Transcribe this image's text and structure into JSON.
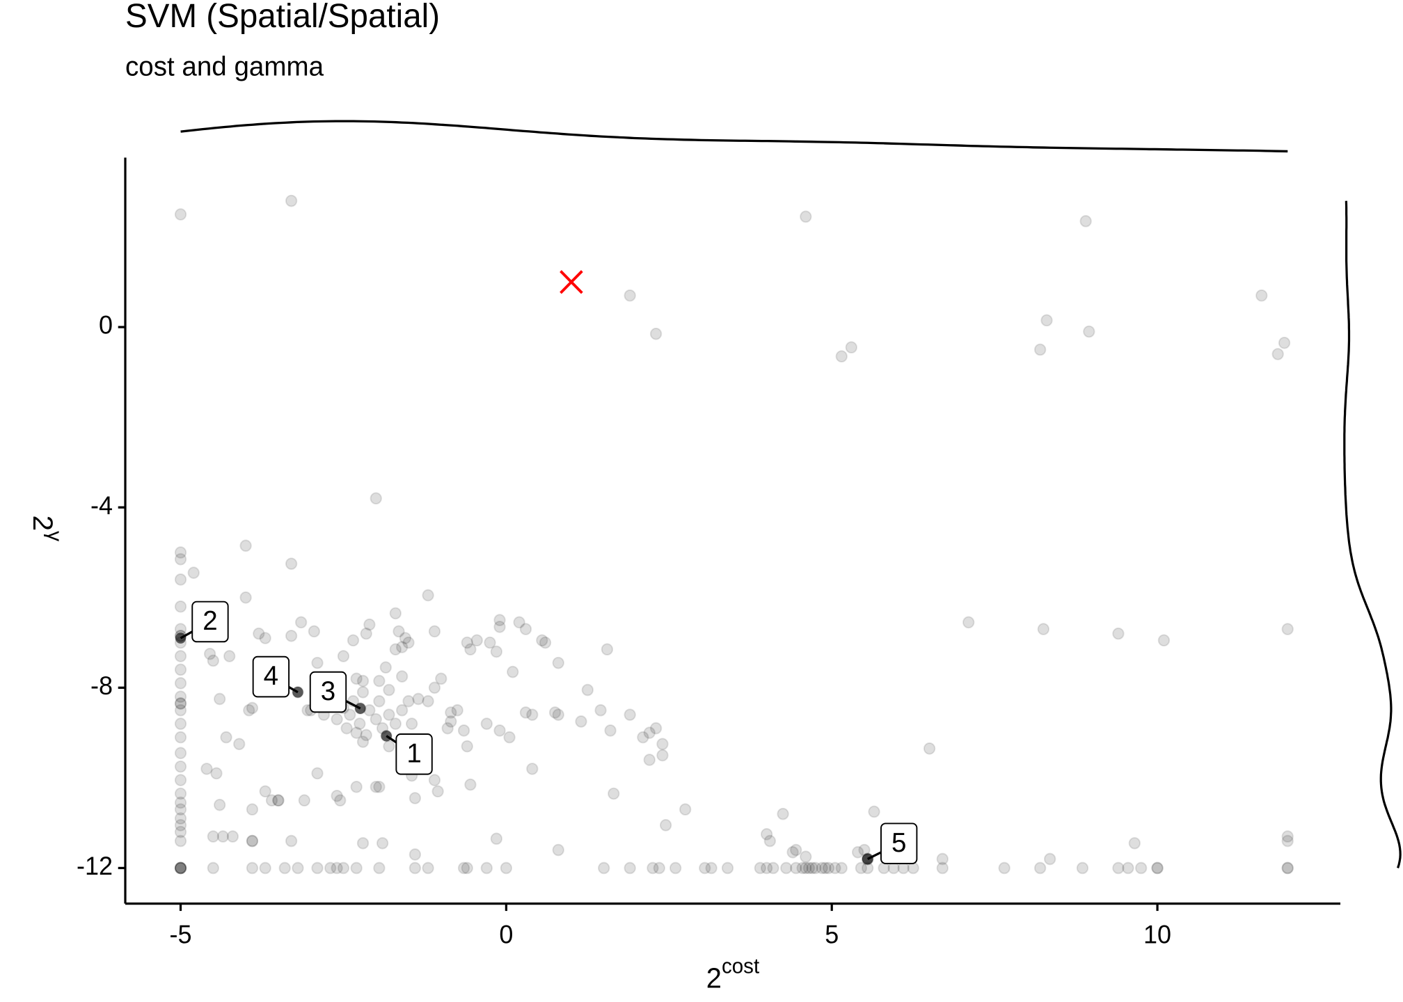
{
  "chart_data": {
    "type": "scatter",
    "title": "SVM (Spatial/Spatial)",
    "subtitle": "cost and gamma",
    "x_label": {
      "base": "2",
      "superscript": "cost"
    },
    "y_label": {
      "base": "2",
      "superscript": "γ"
    },
    "xlim": [
      -5.85,
      12.81
    ],
    "ylim": [
      -12.79,
      3.76
    ],
    "xticks": [
      -5,
      0,
      5,
      10
    ],
    "yticks": [
      0,
      -4,
      -8,
      -12
    ],
    "color": "#000000",
    "alpha": 0.13,
    "marginal_density": true,
    "best": {
      "x": 1,
      "y": 1,
      "color": "#ff0000"
    },
    "x": [
      -5,
      -3.3,
      4.6,
      8.9,
      1.9,
      2.3,
      5.15,
      5.3,
      8.2,
      8.3,
      8.95,
      11.6,
      11.95,
      11.85,
      -2,
      -4,
      -3.3,
      -1.2,
      -5,
      -5,
      -5,
      -4.8,
      -5,
      -4,
      -5,
      -5,
      -5,
      -5,
      -5,
      -5,
      -5,
      -5,
      -5,
      -5,
      -5,
      -5,
      -5,
      -5,
      -5,
      -5,
      -5,
      -5,
      -5,
      -5,
      -5,
      -5,
      -5,
      -5,
      -5,
      -5,
      -5,
      -5,
      -4.5,
      -3.9,
      -3.7,
      -3.4,
      -3.2,
      -2.9,
      -2.7,
      -2.6,
      -2.5,
      -2.3,
      -1.95,
      -1.4,
      -1.2,
      -0.65,
      -0.6,
      -0.3,
      0,
      1.5,
      1.9,
      2.25,
      2.35,
      2.6,
      3.05,
      3.15,
      3.4,
      3.9,
      4.0,
      4.1,
      4.3,
      4.45,
      4.55,
      4.65,
      4.75,
      4.85,
      4.95,
      5.05,
      5.15,
      5.45,
      5.55,
      5.8,
      5.95,
      6.1,
      6.25,
      6.7,
      7.65,
      8.2,
      8.85,
      9.4,
      9.55,
      9.75,
      10,
      12,
      4.6,
      4.7,
      4.9,
      12,
      10,
      7.1,
      8.25,
      9.4,
      10.1,
      12,
      6.5,
      5.65,
      4.25,
      2.75,
      2.45,
      1.65,
      4.0,
      4.05,
      4.4,
      4.45,
      4.6,
      5.4,
      5.5,
      8.35,
      9.65,
      12,
      12,
      6.7,
      0.8,
      -0.15,
      -1.4,
      -1.9,
      -2.2,
      -3.3,
      -4.2,
      -4.35,
      -4.5,
      -4.4,
      -3.9,
      -3.6,
      -3.7,
      -3.1,
      -2.9,
      -2.55,
      -2.6,
      -2.3,
      -2,
      -1.4,
      -1.1,
      -1.05,
      -1.45,
      -4.6,
      -4.45,
      -4.3,
      -4.1,
      -4.4,
      -3.9,
      -3.95,
      -4.25,
      -4.55,
      -4.5,
      -3.8,
      -3.7,
      -3.15,
      -2.95,
      -3.3,
      -2.35,
      -2.15,
      -2.1,
      -1.7,
      -1.65,
      -1.55,
      -1.5,
      -1.1,
      -1.6,
      -1.7,
      -2.5,
      -2.9,
      -1.85,
      -1.6,
      -1,
      -1.1,
      -1.35,
      -1.5,
      -1.2,
      -0.75,
      -0.85,
      -0.9,
      -0.65,
      -0.6,
      -0.3,
      -0.1,
      0.05,
      0.3,
      0.4,
      0.75,
      0.8,
      1.15,
      1.45,
      1.6,
      1.9,
      2.1,
      2.2,
      2.3,
      2.2,
      2.4,
      2.4,
      1.25,
      0.8,
      0.55,
      0.6,
      0.2,
      -0.1,
      -0.1,
      -0.25,
      -0.15,
      0.1,
      -0.45,
      -0.6,
      -0.55,
      0.3,
      1.55,
      0.4,
      -0.55,
      -3,
      -2.8,
      -2.6,
      -2.4,
      -2.25,
      -2.1,
      -2,
      -1.9,
      -1.8,
      -1.7,
      -1.6,
      -2.35,
      -2.3,
      -2.15,
      -2.45,
      -1.95,
      -2.2,
      -1.45,
      -2.5,
      -2.3,
      -2.2,
      -1.95,
      -1.8,
      -2.7,
      -2.85,
      -3.05,
      -2.2,
      -1.8,
      -1.4,
      -0.85,
      -3.9,
      -3.9,
      -3.5,
      -3.5,
      -1.95,
      5.55,
      5.55,
      5.55,
      -1.84,
      -2.24,
      -3.2
    ],
    "y": [
      2.5,
      2.8,
      2.45,
      2.35,
      0.7,
      -0.15,
      -0.65,
      -0.45,
      -0.5,
      0.15,
      -0.1,
      0.7,
      -0.35,
      -0.6,
      -3.8,
      -4.85,
      -5.25,
      -5.95,
      -5,
      -5.15,
      -5.6,
      -5.45,
      -6.2,
      -6,
      -6.7,
      -6.85,
      -6.85,
      -7,
      -7.3,
      -7.6,
      -7.9,
      -8.2,
      -8.35,
      -8.35,
      -8.5,
      -8.8,
      -9.1,
      -9.45,
      -9.75,
      -10.05,
      -10.35,
      -10.55,
      -10.7,
      -10.9,
      -11.05,
      -11.2,
      -11.4,
      -12,
      -12,
      -12,
      -12,
      -12,
      -12,
      -12,
      -12,
      -12,
      -12,
      -12,
      -12,
      -12,
      -12,
      -12,
      -12,
      -12,
      -12,
      -12,
      -12,
      -12,
      -12,
      -12,
      -12,
      -12,
      -12,
      -12,
      -12,
      -12,
      -12,
      -12,
      -12,
      -12,
      -12,
      -12,
      -12,
      -12,
      -12,
      -12,
      -12,
      -12,
      -12,
      -12,
      -12,
      -12,
      -12,
      -12,
      -12,
      -12,
      -12,
      -12,
      -12,
      -12,
      -12,
      -12,
      -12,
      -12,
      -12,
      -12,
      -12,
      -12,
      -12,
      -6.55,
      -6.7,
      -6.8,
      -6.95,
      -6.7,
      -9.35,
      -10.75,
      -10.8,
      -10.7,
      -11.05,
      -10.35,
      -11.25,
      -11.4,
      -11.65,
      -11.6,
      -11.75,
      -11.65,
      -11.6,
      -11.8,
      -11.45,
      -11.3,
      -11.4,
      -11.8,
      -11.6,
      -11.35,
      -11.7,
      -11.45,
      -11.45,
      -11.4,
      -11.3,
      -11.3,
      -11.3,
      -10.6,
      -10.7,
      -10.5,
      -10.3,
      -10.5,
      -9.9,
      -10.5,
      -10.4,
      -10.2,
      -10.2,
      -10.45,
      -10.05,
      -10.3,
      -9.95,
      -9.8,
      -9.9,
      -9.1,
      -9.25,
      -8.25,
      -8.45,
      -8.5,
      -7.3,
      -7.25,
      -7.4,
      -6.8,
      -6.9,
      -6.55,
      -6.75,
      -6.85,
      -6.95,
      -6.8,
      -6.6,
      -6.35,
      -6.75,
      -6.9,
      -7,
      -6.75,
      -7.1,
      -7.15,
      -7.3,
      -7.45,
      -7.55,
      -7.75,
      -7.8,
      -8,
      -8.25,
      -8.3,
      -8.3,
      -8.5,
      -8.75,
      -8.9,
      -8.95,
      -9.3,
      -8.8,
      -8.95,
      -9.1,
      -8.55,
      -8.6,
      -8.55,
      -8.6,
      -8.75,
      -8.5,
      -8.95,
      -8.6,
      -9.1,
      -9,
      -8.9,
      -9.6,
      -9.25,
      -9.5,
      -8.05,
      -7.45,
      -6.95,
      -7,
      -6.55,
      -6.5,
      -6.65,
      -7,
      -7.2,
      -7.65,
      -6.95,
      -7,
      -7.15,
      -6.7,
      -7.15,
      -9.8,
      -10.15,
      -8.5,
      -8.6,
      -8.7,
      -8.6,
      -8.8,
      -8.5,
      -8.7,
      -8.9,
      -8.6,
      -8.8,
      -8.5,
      -8.3,
      -9,
      -9.05,
      -8.9,
      -8.3,
      -8.1,
      -8.8,
      -8.45,
      -7.8,
      -7.85,
      -7.85,
      -8.05,
      -8.2,
      -8.35,
      -8.5,
      -9.2,
      -9.3,
      -9.75,
      -8.55,
      -11.4,
      -11.4,
      -10.5,
      -10.5,
      -10.2,
      -11.8,
      -11.8,
      -11.8,
      -9.07,
      -8.46,
      -8.1
    ],
    "annotations": [
      {
        "label": "1",
        "x": -1.84,
        "y": -9.07
      },
      {
        "label": "2",
        "x": -5,
        "y": -6.9
      },
      {
        "label": "3",
        "x": -2.24,
        "y": -8.46
      },
      {
        "label": "4",
        "x": -3.2,
        "y": -8.1
      },
      {
        "label": "5",
        "x": 5.55,
        "y": -11.8
      }
    ]
  }
}
